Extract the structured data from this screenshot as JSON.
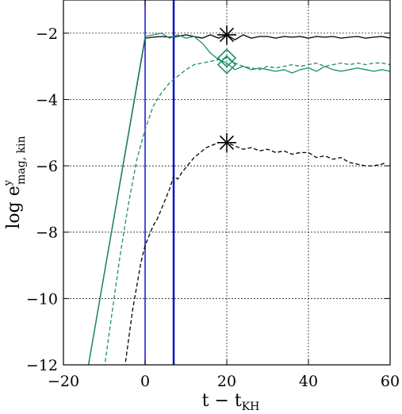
{
  "chart_data": {
    "type": "line",
    "xlabel": {
      "main": "t − t",
      "sub": "KH"
    },
    "ylabel": {
      "main": "log e",
      "sup": "y",
      "sub": "mag, kin"
    },
    "xlim": [
      -20,
      60
    ],
    "ylim": [
      -12,
      -1
    ],
    "xticks": [
      -20,
      0,
      20,
      40,
      60
    ],
    "yticks": [
      -12,
      -10,
      -8,
      -6,
      -4,
      -2
    ],
    "xtick_labels": [
      "−20",
      "0",
      "20",
      "40",
      "60"
    ],
    "ytick_labels": [
      "−12",
      "−10",
      "−8",
      "−6",
      "−4",
      "−2"
    ],
    "grid": true,
    "vlines": [
      {
        "x": 0,
        "color": "#1010d0",
        "width": 1.5
      },
      {
        "x": 7,
        "color": "#1010d0",
        "width": 2.5
      }
    ],
    "series": [
      {
        "color": "#000000",
        "style": "solid",
        "x": [
          -14,
          0,
          2,
          4,
          6,
          8,
          10,
          12,
          14,
          16,
          18,
          20,
          22,
          24,
          26,
          28,
          30,
          32,
          34,
          36,
          38,
          40,
          42,
          44,
          46,
          48,
          50,
          52,
          54,
          56,
          58,
          60
        ],
        "y": [
          -12.1,
          -2.15,
          -2.12,
          -2.1,
          -2.12,
          -2.1,
          -2.05,
          -2.1,
          -2.15,
          -2.05,
          -2.15,
          -2.05,
          -2.2,
          -2.05,
          -2.15,
          -2.1,
          -2.1,
          -2.15,
          -2.1,
          -2.12,
          -2.1,
          -2.15,
          -2.1,
          -2.12,
          -2.1,
          -2.15,
          -2.12,
          -2.1,
          -2.15,
          -2.12,
          -2.1,
          -2.15
        ]
      },
      {
        "color": "#1a9070",
        "style": "solid",
        "x": [
          -14,
          0,
          2,
          4,
          6,
          8,
          10,
          12,
          14,
          16,
          18,
          20,
          22,
          24,
          26,
          28,
          30,
          32,
          34,
          36,
          38,
          40,
          42,
          44,
          46,
          48,
          50,
          52,
          54,
          56,
          58,
          60
        ],
        "y": [
          -12.1,
          -2.1,
          -2.05,
          -2.0,
          -2.15,
          -2.05,
          -2.15,
          -2.1,
          -2.3,
          -2.6,
          -2.8,
          -2.9,
          -3.1,
          -3.0,
          -3.1,
          -3.05,
          -3.1,
          -3.15,
          -3.1,
          -3.2,
          -3.1,
          -3.05,
          -3.15,
          -3.0,
          -3.1,
          -3.15,
          -3.1,
          -3.05,
          -3.1,
          -3.15,
          -3.1,
          -3.15
        ]
      },
      {
        "color": "#1a9070",
        "style": "dashed",
        "x": [
          -10,
          -6,
          -4,
          -2,
          0,
          2,
          4,
          6,
          8,
          10,
          12,
          14,
          16,
          18,
          20,
          22,
          24,
          26,
          28,
          30,
          32,
          34,
          36,
          38,
          40,
          42,
          44,
          46,
          48,
          50,
          52,
          54,
          56,
          58,
          60
        ],
        "y": [
          -12.1,
          -8.6,
          -7.1,
          -5.8,
          -4.9,
          -4.2,
          -3.8,
          -3.5,
          -3.3,
          -3.1,
          -2.95,
          -2.9,
          -2.85,
          -2.8,
          -2.75,
          -2.9,
          -3.0,
          -3.05,
          -3.1,
          -3.0,
          -3.05,
          -3.0,
          -2.95,
          -3.0,
          -2.95,
          -2.9,
          -3.0,
          -2.95,
          -2.9,
          -2.95,
          -2.9,
          -2.95,
          -2.9,
          -2.9,
          -2.95
        ]
      },
      {
        "color": "#000000",
        "style": "dashed",
        "x": [
          -5,
          -3,
          -1,
          0,
          1,
          2,
          3,
          4,
          5,
          6,
          7,
          8,
          9,
          10,
          11,
          12,
          13,
          14,
          15,
          16,
          17,
          18,
          19,
          20,
          22,
          24,
          26,
          28,
          30,
          32,
          34,
          36,
          38,
          40,
          42,
          44,
          46,
          48,
          50,
          52,
          54,
          56,
          58,
          59
        ],
        "y": [
          -12.1,
          -10.3,
          -8.9,
          -8.4,
          -8.1,
          -7.8,
          -7.6,
          -7.3,
          -7.0,
          -6.7,
          -6.3,
          -6.4,
          -6.2,
          -6.05,
          -5.9,
          -5.75,
          -5.65,
          -5.55,
          -5.45,
          -5.4,
          -5.35,
          -5.3,
          -5.3,
          -5.3,
          -5.4,
          -5.5,
          -5.45,
          -5.55,
          -5.5,
          -5.6,
          -5.55,
          -5.65,
          -5.6,
          -5.6,
          -5.75,
          -5.7,
          -5.8,
          -5.75,
          -5.9,
          -5.95,
          -6.0,
          -6.0,
          -5.95,
          -5.9
        ]
      }
    ],
    "markers": [
      {
        "shape": "star",
        "x": 20,
        "y": -2.05,
        "color": "#000000"
      },
      {
        "shape": "star",
        "x": 20,
        "y": -5.3,
        "color": "#000000"
      },
      {
        "shape": "diamond",
        "x": 20,
        "y": -2.75,
        "color": "#1a9070"
      },
      {
        "shape": "diamond",
        "x": 20,
        "y": -2.95,
        "color": "#1a9070"
      }
    ]
  }
}
